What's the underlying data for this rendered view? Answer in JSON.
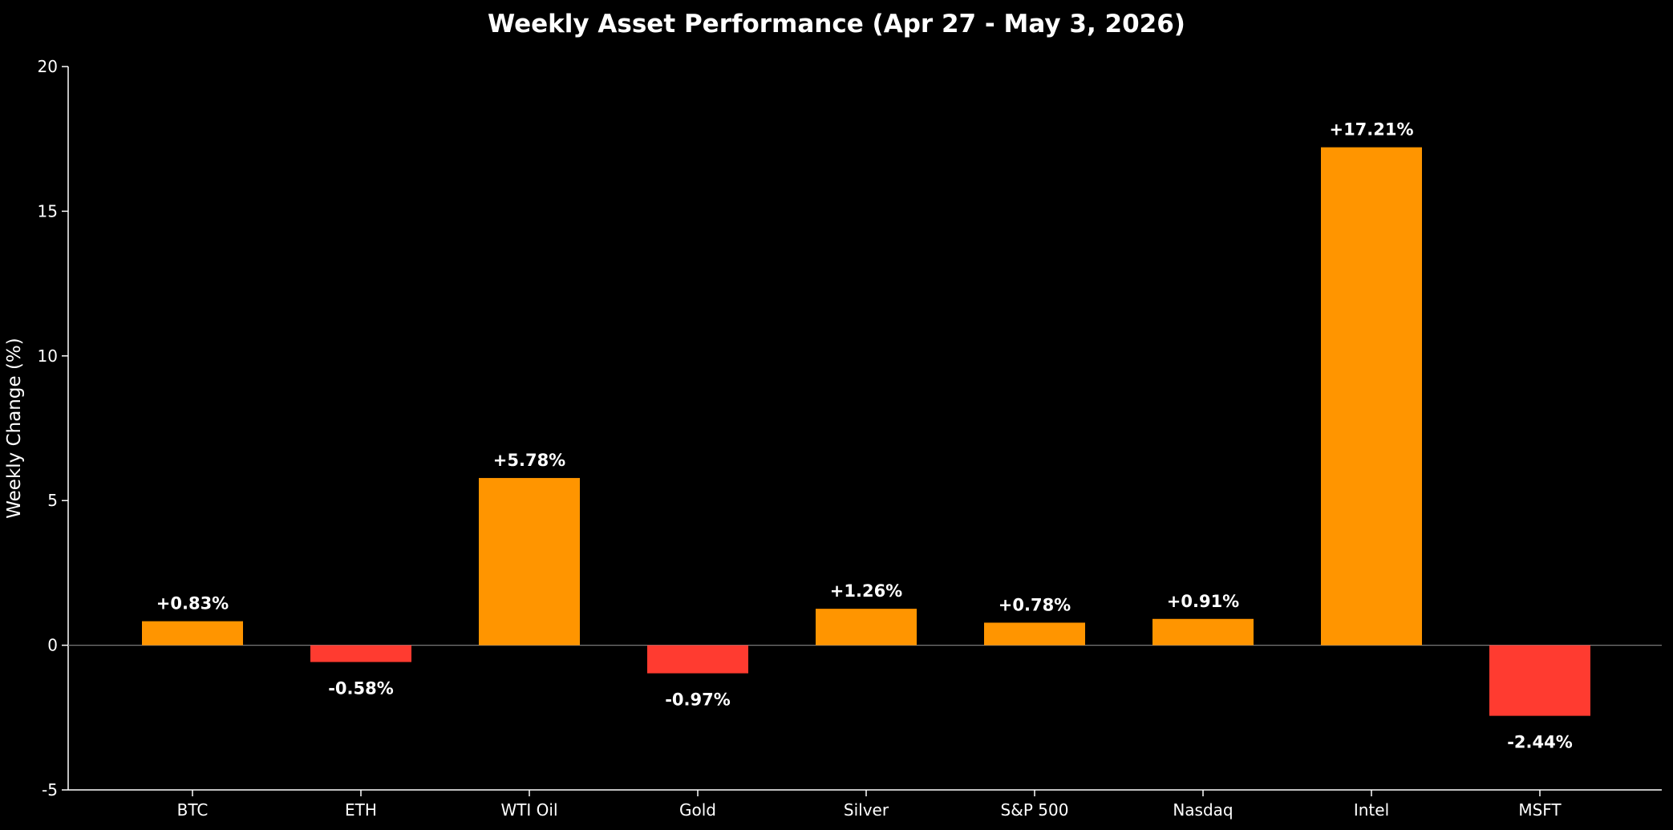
{
  "chart_data": {
    "type": "bar",
    "title": "Weekly Asset Performance (Apr 27 - May 3, 2026)",
    "xlabel": "",
    "ylabel": "Weekly Change (%)",
    "ylim": [
      -5,
      20
    ],
    "yticks": [
      -5,
      0,
      5,
      10,
      15,
      20
    ],
    "grid": false,
    "zero_line": true,
    "categories": [
      "BTC",
      "ETH",
      "WTI Oil",
      "Gold",
      "Silver",
      "S&P 500",
      "Nasdaq",
      "Intel",
      "MSFT"
    ],
    "values": [
      0.83,
      -0.58,
      5.78,
      -0.97,
      1.26,
      0.78,
      0.91,
      17.21,
      -2.44
    ],
    "data_labels": [
      "+0.83%",
      "-0.58%",
      "+5.78%",
      "-0.97%",
      "+1.26%",
      "+0.78%",
      "+0.91%",
      "+17.21%",
      "-2.44%"
    ],
    "colors": {
      "positive": "#ff9500",
      "negative": "#ff3b30",
      "background": "#000000",
      "text": "#ffffff",
      "axis": "#ffffff",
      "zero_line": "#777777"
    }
  }
}
